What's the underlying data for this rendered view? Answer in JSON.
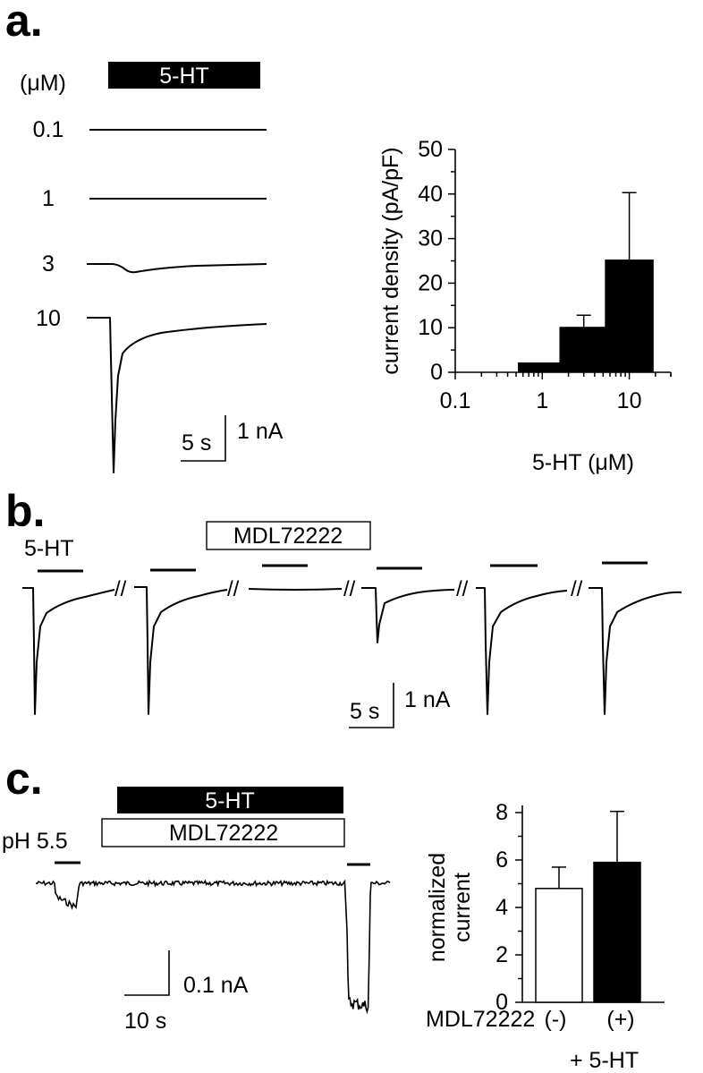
{
  "panel_a": {
    "letter": "a.",
    "unit_label": "(μM)",
    "drug_bar_label": "5-HT",
    "concentrations": [
      "0.1",
      "1",
      "3",
      "10"
    ],
    "scale_time": "5 s",
    "scale_current": "1 nA"
  },
  "panel_b": {
    "letter": "b.",
    "agonist_label": "5-HT",
    "antagonist_label": "MDL72222",
    "break_mark": "//",
    "scale_time": "5 s",
    "scale_current": "1 nA"
  },
  "panel_c": {
    "letter": "c.",
    "agonist_label": "5-HT",
    "antagonist_label": "MDL72222",
    "ph_label": "pH 5.5",
    "scale_current": "0.1 nA",
    "scale_time": "10 s",
    "row_label": "MDL72222",
    "footer_label": "+ 5-HT"
  },
  "chart_data": [
    {
      "type": "bar",
      "ylabel": "current density (pA/pF)",
      "xlabel": "5-HT (μM)",
      "x_scale": "log",
      "xlim": [
        0.1,
        30
      ],
      "x_ticks": [
        0.1,
        1,
        10
      ],
      "x_tick_labels": [
        "0.1",
        "1",
        "10"
      ],
      "ylim": [
        0,
        50
      ],
      "y_ticks": [
        0,
        10,
        20,
        30,
        40,
        50
      ],
      "x": [
        0.1,
        1,
        3,
        10
      ],
      "values": [
        0,
        2.2,
        10.2,
        25.3
      ],
      "errors": [
        0,
        0,
        2.6,
        15.0
      ],
      "bar_color": "#000000"
    },
    {
      "type": "bar",
      "ylabel": "normalized current",
      "categories": [
        "(-)",
        "(+)"
      ],
      "values": [
        4.8,
        5.9
      ],
      "errors": [
        0.9,
        2.15
      ],
      "ylim": [
        0,
        8
      ],
      "y_ticks": [
        0,
        2,
        4,
        6,
        8
      ],
      "bar_colors": [
        "#ffffff",
        "#000000"
      ]
    }
  ]
}
